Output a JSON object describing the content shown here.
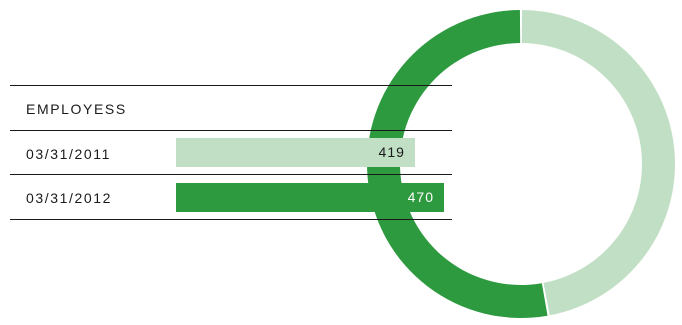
{
  "chart_data": {
    "type": "bar",
    "title": "EMPLOYESS",
    "categories": [
      "03/31/2011",
      "03/31/2012"
    ],
    "values": [
      419,
      470
    ],
    "colors": [
      "#c1dfc4",
      "#2e9a40"
    ],
    "value_label_colors": [
      "#1a1a1a",
      "#ffffff"
    ]
  },
  "donut": {
    "type": "pie",
    "values": [
      419,
      470
    ],
    "colors": [
      "#c1dfc4",
      "#2e9a40"
    ]
  }
}
